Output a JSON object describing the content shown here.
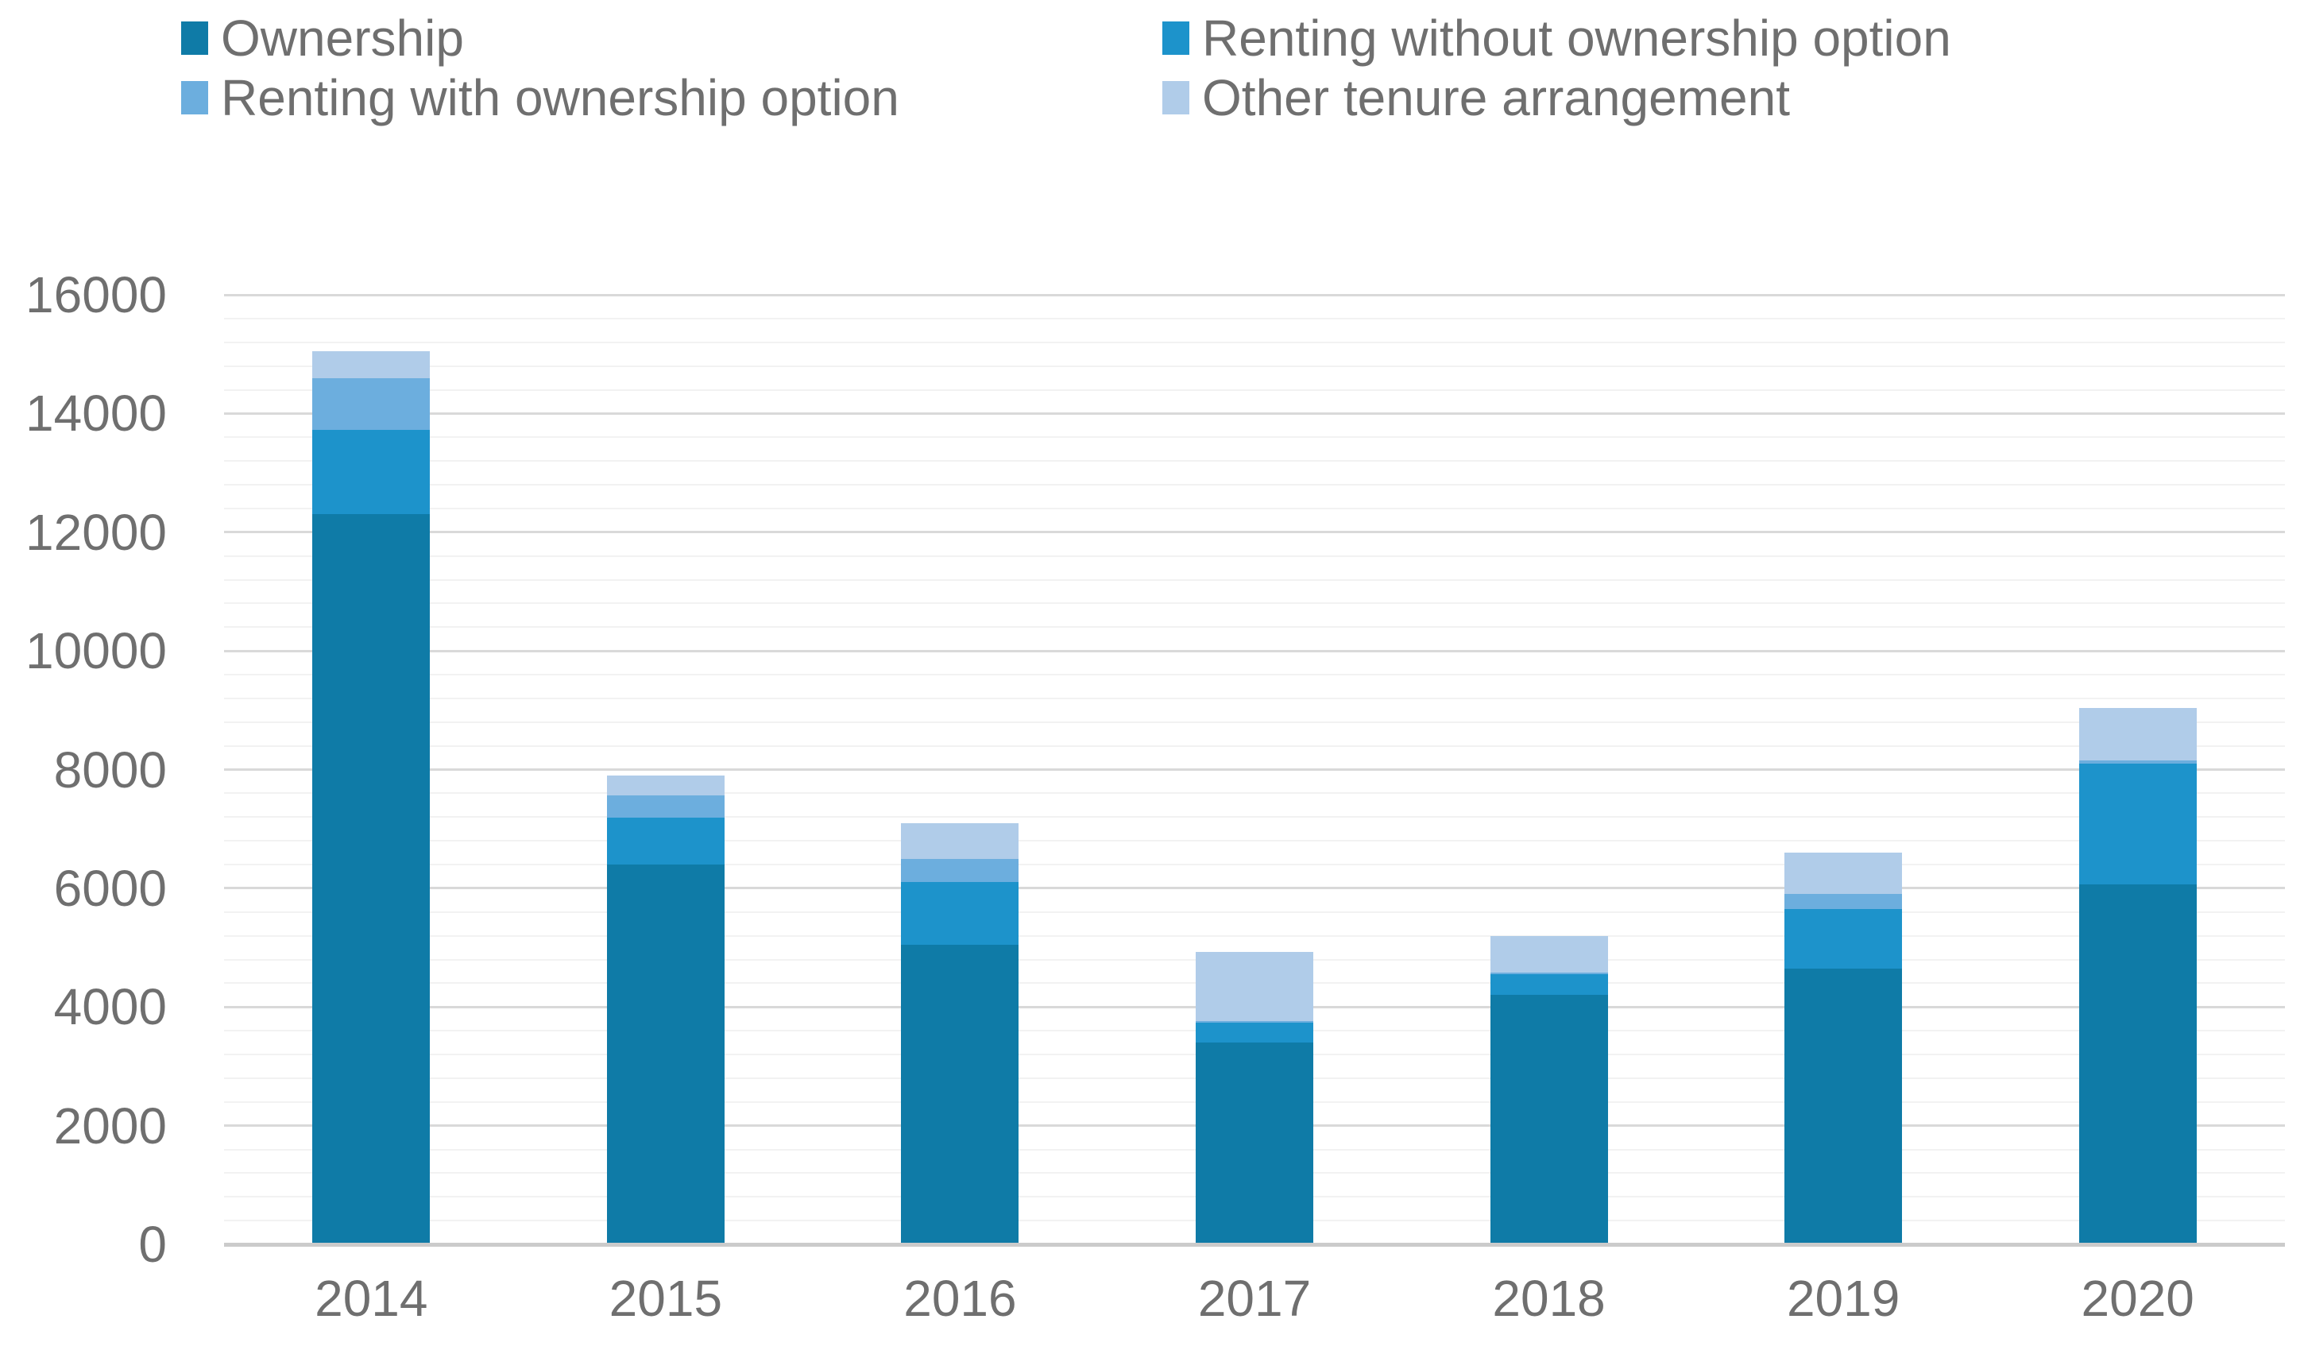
{
  "chart_data": {
    "type": "bar",
    "stacked": true,
    "title": "",
    "categories": [
      "2014",
      "2015",
      "2016",
      "2017",
      "2018",
      "2019",
      "2020"
    ],
    "series": [
      {
        "name": "Ownership",
        "color": "#0F7BA7",
        "values": [
          12300,
          6400,
          5050,
          3400,
          4200,
          4650,
          6070
        ]
      },
      {
        "name": "Renting without ownership option",
        "color": "#1D93CB",
        "values": [
          1430,
          790,
          1050,
          330,
          350,
          1000,
          2030
        ]
      },
      {
        "name": "Renting with ownership option",
        "color": "#6CAEDE",
        "values": [
          860,
          380,
          400,
          30,
          30,
          250,
          60
        ]
      },
      {
        "name": "Other tenure arrangement",
        "color": "#B0CCE9",
        "values": [
          460,
          330,
          600,
          1170,
          620,
          700,
          880
        ]
      }
    ],
    "totals": [
      15050,
      7900,
      7100,
      4930,
      5200,
      6600,
      9040
    ],
    "xlabel": "",
    "ylabel": "",
    "ylim": [
      0,
      16000
    ],
    "y_major_unit": 2000,
    "y_minor_unit": 400,
    "y_tick_labels": [
      "0",
      "2000",
      "4000",
      "6000",
      "8000",
      "10000",
      "12000",
      "14000",
      "16000"
    ],
    "grid": {
      "minor_color": "#F2F2F2",
      "major_color": "#D9D9D9",
      "axis_line_color": "#CBCBCB"
    },
    "legend_position": "top",
    "text_color": "#6F6F6F",
    "background": "#FFFFFF"
  }
}
